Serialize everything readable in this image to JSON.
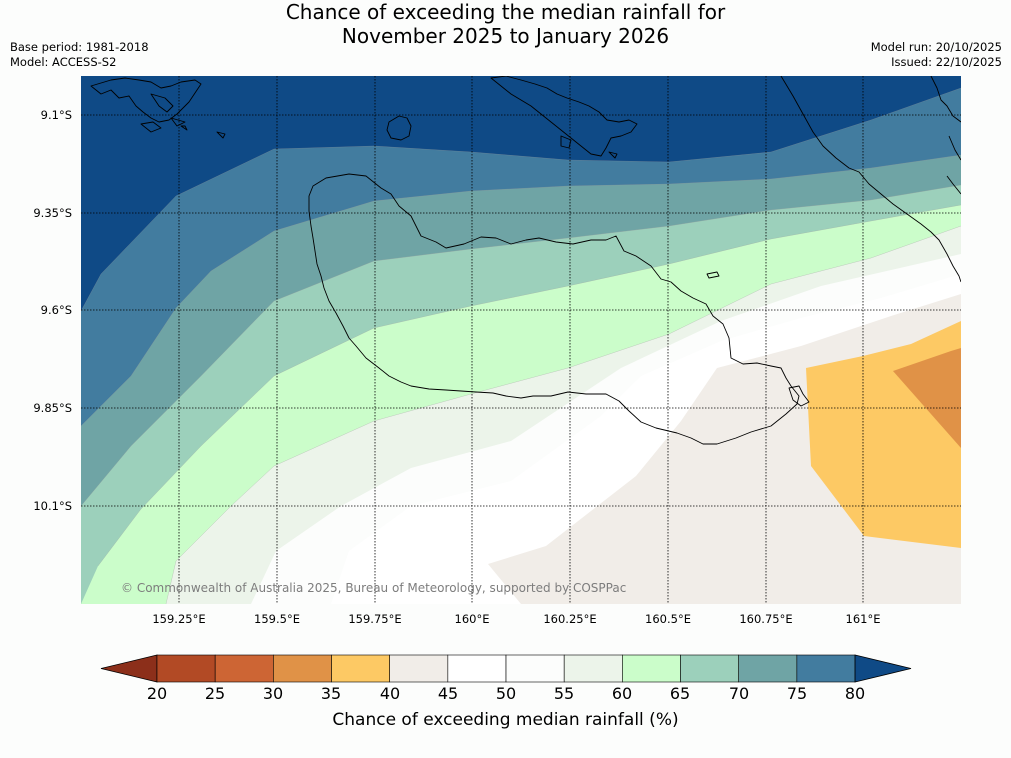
{
  "header": {
    "title_line1": "Chance of exceeding the median rainfall for",
    "title_line2": "November 2025 to January 2026",
    "base_period": "Base period: 1981-2018",
    "model": "Model: ACCESS-S2",
    "model_run": "Model run: 20/10/2025",
    "issued": "Issued: 22/10/2025"
  },
  "map": {
    "copyright": "© Commonwealth of Australia 2025, Bureau of Meteorology, supported by COSPPac",
    "lat_labels": [
      "9.1°S",
      "9.35°S",
      "9.6°S",
      "9.85°S",
      "10.1°S"
    ],
    "lon_labels": [
      "159.25°E",
      "159.5°E",
      "159.75°E",
      "160°E",
      "160.25°E",
      "160.5°E",
      "160.75°E",
      "161°E"
    ],
    "graticule": "dotted",
    "coastline_color": "#000000"
  },
  "colorbar": {
    "label": "Chance of exceeding median rainfall (%)",
    "ticks": [
      "20",
      "25",
      "30",
      "35",
      "40",
      "45",
      "50",
      "55",
      "60",
      "65",
      "70",
      "75",
      "80"
    ],
    "under_color": "#8c2f1a",
    "over_color": "#0f4a86",
    "colors": [
      "#b24a25",
      "#cd6534",
      "#e09247",
      "#fdc964",
      "#f1ede8",
      "#ffffff",
      "#fcfdfc",
      "#ecf4ea",
      "#cbfdca",
      "#9cd0bb",
      "#6fa4a5",
      "#427c9f"
    ]
  }
}
